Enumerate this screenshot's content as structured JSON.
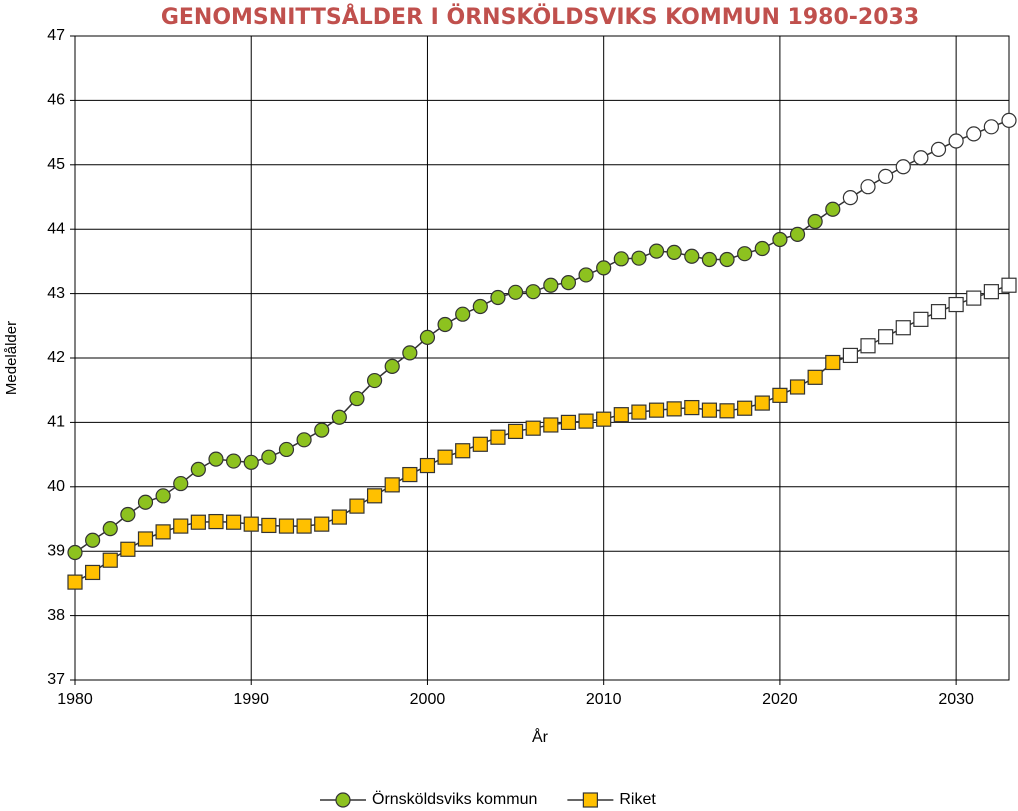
{
  "chart_data": {
    "type": "line",
    "title": "GENOMSNITTSÅLDER I ÖRNSKÖLDSVIKS KOMMUN 1980-2033",
    "x_label": "År",
    "y_label": "Medelålder",
    "x": [
      1980,
      1981,
      1982,
      1983,
      1984,
      1985,
      1986,
      1987,
      1988,
      1989,
      1990,
      1991,
      1992,
      1993,
      1994,
      1995,
      1996,
      1997,
      1998,
      1999,
      2000,
      2001,
      2002,
      2003,
      2004,
      2005,
      2006,
      2007,
      2008,
      2009,
      2010,
      2011,
      2012,
      2013,
      2014,
      2015,
      2016,
      2017,
      2018,
      2019,
      2020,
      2021,
      2022,
      2023,
      2024,
      2025,
      2026,
      2027,
      2028,
      2029,
      2030,
      2031,
      2032,
      2033
    ],
    "series": [
      {
        "name": "Örnsköldsviks kommun",
        "color": "#8dc21f",
        "marker": "circle",
        "values": [
          38.98,
          39.17,
          39.35,
          39.57,
          39.76,
          39.86,
          40.05,
          40.27,
          40.43,
          40.4,
          40.38,
          40.46,
          40.58,
          40.73,
          40.88,
          41.08,
          41.37,
          41.65,
          41.87,
          42.08,
          42.32,
          42.52,
          42.68,
          42.8,
          42.94,
          43.02,
          43.03,
          43.13,
          43.17,
          43.29,
          43.4,
          43.54,
          43.55,
          43.66,
          43.64,
          43.58,
          43.53,
          43.53,
          43.62,
          43.7,
          43.84,
          43.92,
          44.12,
          44.31,
          44.49,
          44.66,
          44.82,
          44.97,
          45.11,
          45.24,
          45.37,
          45.48,
          45.59,
          45.69
        ]
      },
      {
        "name": "Riket",
        "color": "#ffc000",
        "marker": "square",
        "values": [
          38.52,
          38.67,
          38.86,
          39.03,
          39.19,
          39.3,
          39.39,
          39.45,
          39.46,
          39.45,
          39.42,
          39.4,
          39.39,
          39.39,
          39.42,
          39.53,
          39.7,
          39.86,
          40.03,
          40.19,
          40.33,
          40.46,
          40.56,
          40.66,
          40.77,
          40.86,
          40.91,
          40.96,
          41.0,
          41.02,
          41.05,
          41.12,
          41.16,
          41.19,
          41.21,
          41.23,
          41.19,
          41.18,
          41.22,
          41.3,
          41.42,
          41.55,
          41.7,
          41.93,
          42.04,
          42.19,
          42.33,
          42.47,
          42.6,
          42.72,
          42.83,
          42.93,
          43.03,
          43.13
        ]
      }
    ],
    "projection": {
      "from": 2024,
      "color": "#ffffff"
    },
    "xlim": [
      1980,
      2033
    ],
    "xticks": [
      1980,
      1990,
      2000,
      2010,
      2020,
      2030
    ],
    "ylim": [
      37,
      47
    ],
    "yticks": [
      37,
      38,
      39,
      40,
      41,
      42,
      43,
      44,
      45,
      46,
      47
    ],
    "grid": true,
    "legend": "bottom"
  }
}
